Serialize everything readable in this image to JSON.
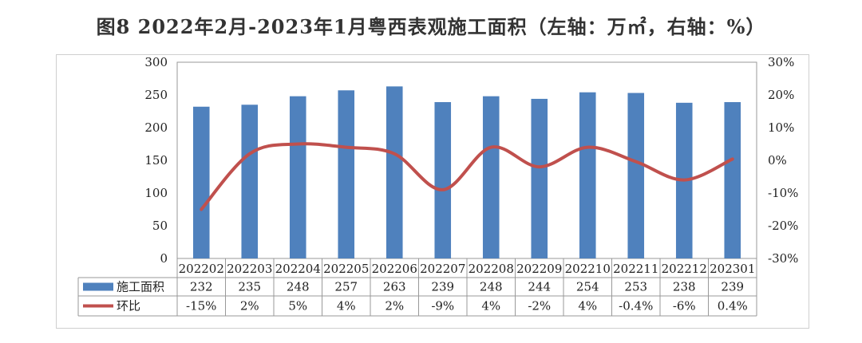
{
  "title": "图8  2022年2月-2023年1月粤西表观施工面积（左轴：万㎡，右轴：%）",
  "chart_data": {
    "type": "bar",
    "categories": [
      "202202",
      "202203",
      "202204",
      "202205",
      "202206",
      "202207",
      "202208",
      "202209",
      "202210",
      "202211",
      "202212",
      "202301"
    ],
    "series": [
      {
        "name": "施工面积",
        "axis": "left",
        "type": "bar",
        "color": "#4f81bd",
        "values": [
          232,
          235,
          248,
          257,
          263,
          239,
          248,
          244,
          254,
          253,
          238,
          239
        ],
        "labels": [
          "232",
          "235",
          "248",
          "257",
          "263",
          "239",
          "248",
          "244",
          "254",
          "253",
          "238",
          "239"
        ]
      },
      {
        "name": "环比",
        "axis": "right",
        "type": "line",
        "color": "#c0504d",
        "values": [
          -15,
          2,
          5,
          4,
          2,
          -9,
          4,
          -2,
          4,
          -0.4,
          -6,
          0.4
        ],
        "labels": [
          "-15%",
          "2%",
          "5%",
          "4%",
          "2%",
          "-9%",
          "4%",
          "-2%",
          "4%",
          "-0.4%",
          "-6%",
          "0.4%"
        ]
      }
    ],
    "left_axis": {
      "min": 0,
      "max": 300,
      "ticks": [
        "0",
        "50",
        "100",
        "150",
        "200",
        "250",
        "300"
      ]
    },
    "right_axis": {
      "min": -30,
      "max": 30,
      "ticks": [
        "-30%",
        "-20%",
        "-10%",
        "0%",
        "10%",
        "20%",
        "30%"
      ]
    },
    "grid": false,
    "data_table": true
  }
}
